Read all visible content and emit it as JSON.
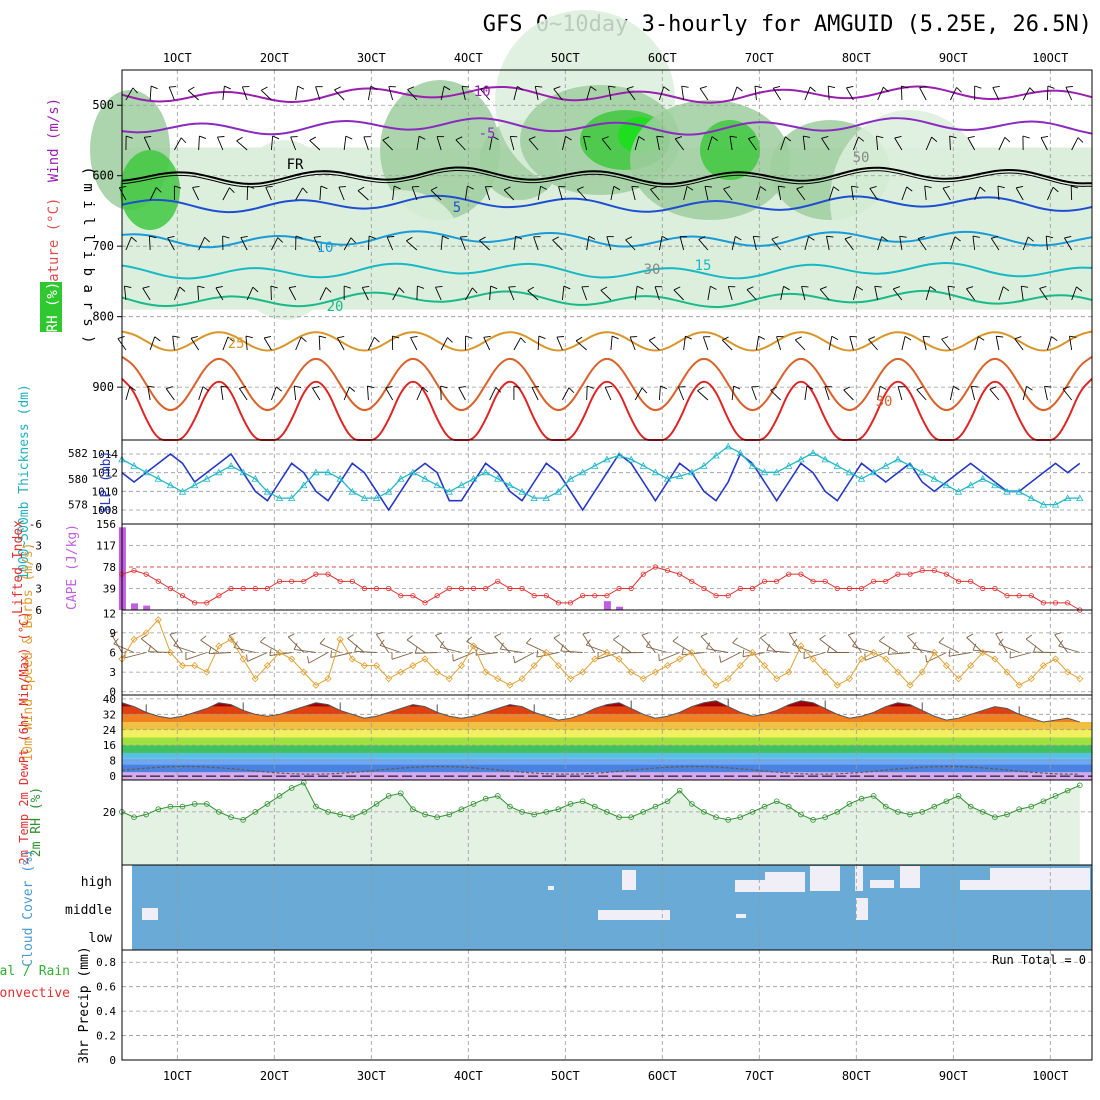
{
  "title": "GFS 0~10day 3-hourly for AMGUID (5.25E, 26.5N)",
  "time_axis": {
    "labels": [
      "1OCT",
      "2OCT",
      "3OCT",
      "4OCT",
      "5OCT",
      "6OCT",
      "7OCT",
      "8OCT",
      "9OCT",
      "10OCT"
    ],
    "start_hour": 0,
    "step_hours": 3,
    "n_steps": 80
  },
  "panels": {
    "upper_air": {
      "ylabels": [
        "Wind (m/s)",
        "Temperature (°C)",
        "RH (%)"
      ],
      "ylabel_mid": "( m i l l i b a r s )",
      "pressure_ticks": [
        500,
        600,
        700,
        800,
        900
      ],
      "ylim_hpa": [
        450,
        975
      ],
      "contour_labels": [
        "-10",
        "-5",
        "FR",
        "5",
        "10",
        "15",
        "20",
        "25",
        "30",
        "30",
        "50"
      ],
      "temperature_isotherms_c": [
        -10,
        -5,
        0,
        5,
        10,
        15,
        20,
        25,
        30,
        35
      ],
      "isotherm_base_level_hpa": [
        485,
        530,
        600,
        640,
        690,
        735,
        775,
        835,
        885,
        930
      ],
      "colors": {
        "neg10": "#9a1fb0",
        "neg5": "#8a2bbf",
        "fr": "#000000",
        "p5": "#1f4fd1",
        "p10": "#1a9ad6",
        "p15": "#18b8c4",
        "p20": "#1ab88a",
        "p25": "#d9962a",
        "p30": "#d9622a",
        "p35": "#e02424",
        "rh_light": "#dcefdc",
        "rh_mid": "#9fce9f",
        "rh_high": "#40c840",
        "rh_max": "#16e016"
      }
    },
    "thickness_slp": {
      "ylabel_left": "1000~500mb Thickness (dm)",
      "ylabel_right": "SLP (mb)",
      "thickness_ticks": [
        578,
        580,
        582
      ],
      "slp_ticks": [
        1008,
        1010,
        1012,
        1014
      ],
      "thickness_ylim": [
        576.5,
        583
      ],
      "slp_ylim": [
        1006.5,
        1015.5
      ],
      "thickness_color": "#22b8c8",
      "slp_color": "#2438c8"
    },
    "cape_li": {
      "ylabel_left": "Lifted Index",
      "ylabel_right": "CAPE (J/kg)",
      "li_ticks": [
        "-6",
        "-3",
        "0",
        "3",
        "6"
      ],
      "cape_ticks": [
        39,
        78,
        117,
        156
      ],
      "li_color": "#e03030",
      "cape_color": "#c060e0",
      "cape_bars": [
        {
          "step": 0,
          "value": 150
        },
        {
          "step": 1,
          "value": 12
        },
        {
          "step": 2,
          "value": 8
        },
        {
          "step": 40,
          "value": 16
        },
        {
          "step": 41,
          "value": 6
        }
      ]
    },
    "wind10m": {
      "ylabel": "10m Wind Speed & Barbs (m/s)",
      "ticks": [
        0,
        3,
        6,
        9,
        12
      ],
      "ylim": [
        -0.5,
        12.5
      ],
      "color": "#e0a030"
    },
    "temp2m": {
      "ylabel": "2m Temp 2m DewPt (6hr Min/Max) (°C)",
      "ticks": [
        0,
        8,
        16,
        24,
        32,
        40
      ],
      "ylim": [
        -2,
        42
      ],
      "color_bands": [
        "#d8a8f0",
        "#4a82e0",
        "#6aa8ff",
        "#58c0e0",
        "#40c060",
        "#a0e040",
        "#f0f060",
        "#f0c040",
        "#f08020",
        "#e04010",
        "#a00000"
      ]
    },
    "rh2m": {
      "ylabel": "2m RH (%)",
      "ticks": [
        20
      ],
      "ylim": [
        0,
        32
      ],
      "color": "#309030"
    },
    "cloud": {
      "ylabel": "Cloud Cover (%)",
      "levels": [
        "high",
        "middle",
        "low"
      ],
      "color_cloud": "#6aaad6",
      "color_clear": "#f0eef6"
    },
    "precip": {
      "ylabel_left": "Total / Rain",
      "ylabel_left2": "Convective",
      "ylabel_right": "3hr Precip (mm)",
      "ticks": [
        "0",
        "0.2",
        "0.4",
        "0.6",
        "0.8"
      ],
      "ylim": [
        0,
        0.9
      ],
      "run_total_text": "Run Total = 0",
      "values": []
    }
  },
  "chart_data": {
    "type": "line",
    "series_temp2m_max": [
      38,
      36,
      33,
      31,
      30,
      31,
      33,
      35,
      38,
      37,
      34,
      32,
      31,
      32,
      34,
      36,
      38,
      37,
      34,
      32,
      30,
      31,
      33,
      35,
      37,
      36,
      33,
      31,
      30,
      31,
      33,
      35,
      37,
      36,
      33,
      31,
      29,
      30,
      32,
      35,
      37,
      38,
      35,
      32,
      30,
      31,
      33,
      36,
      38,
      39,
      36,
      33,
      31,
      32,
      34,
      37,
      39,
      38,
      35,
      32,
      30,
      31,
      33,
      36,
      38,
      37,
      34,
      31,
      29,
      30,
      32,
      34,
      36,
      35,
      32,
      30,
      28,
      29,
      30,
      28
    ],
    "series_rh2m": [
      20,
      18,
      19,
      21,
      22,
      22,
      23,
      23,
      20,
      18,
      17,
      20,
      23,
      26,
      29,
      31,
      22,
      20,
      19,
      18,
      20,
      23,
      26,
      27,
      21,
      19,
      18,
      19,
      21,
      23,
      25,
      26,
      22,
      20,
      19,
      20,
      21,
      23,
      24,
      22,
      20,
      18,
      18,
      20,
      22,
      24,
      28,
      23,
      20,
      18,
      17,
      18,
      20,
      22,
      24,
      22,
      19,
      17,
      18,
      20,
      23,
      25,
      26,
      22,
      20,
      19,
      20,
      22,
      24,
      26,
      22,
      20,
      18,
      19,
      21,
      22,
      24,
      26,
      28,
      30
    ],
    "series_wind10m": [
      5,
      8,
      9,
      11,
      6,
      4,
      4,
      3,
      7,
      8,
      5,
      2,
      4,
      6,
      5,
      3,
      1,
      2,
      8,
      5,
      4,
      4,
      2,
      3,
      4,
      5,
      3,
      2,
      4,
      7,
      3,
      2,
      1,
      2,
      4,
      6,
      4,
      2,
      3,
      5,
      6,
      5,
      3,
      2,
      3,
      4,
      5,
      6,
      3,
      1,
      2,
      4,
      6,
      4,
      2,
      3,
      7,
      5,
      3,
      1,
      2,
      5,
      6,
      5,
      3,
      1,
      3,
      6,
      4,
      2,
      4,
      6,
      5,
      3,
      1,
      2,
      4,
      5,
      3,
      2
    ],
    "series_slp": [
      1012,
      1011,
      1012,
      1013,
      1014,
      1013,
      1011,
      1012,
      1013,
      1014,
      1012,
      1010,
      1009,
      1011,
      1013,
      1012,
      1010,
      1009,
      1011,
      1013,
      1012,
      1010,
      1008,
      1010,
      1012,
      1013,
      1012,
      1009,
      1009,
      1011,
      1013,
      1012,
      1010,
      1009,
      1011,
      1013,
      1012,
      1010,
      1008,
      1010,
      1012,
      1014,
      1013,
      1011,
      1009,
      1011,
      1013,
      1012,
      1010,
      1009,
      1011,
      1014,
      1013,
      1011,
      1009,
      1011,
      1013,
      1012,
      1010,
      1009,
      1011,
      1013,
      1012,
      1011,
      1012,
      1013,
      1011,
      1010,
      1011,
      1012,
      1013,
      1012,
      1011,
      1010,
      1010,
      1011,
      1012,
      1013,
      1012,
      1013
    ],
    "series_thickness": [
      581.5,
      581,
      580.5,
      580,
      579.5,
      579,
      579.5,
      580,
      580.5,
      581,
      580.5,
      580,
      579,
      578.5,
      578.5,
      579.5,
      580.5,
      580.5,
      580,
      579,
      578.5,
      578.5,
      579,
      580,
      580.5,
      580,
      579.5,
      579,
      579.5,
      580,
      580.5,
      580,
      579.5,
      579,
      578.5,
      578.5,
      579,
      580,
      580.5,
      581,
      581.5,
      581.8,
      581.5,
      581,
      580.5,
      580,
      580.2,
      580.5,
      581,
      581.8,
      582.5,
      582,
      581,
      580.5,
      580.5,
      581,
      581.5,
      582,
      581.5,
      581,
      580.5,
      580,
      580.5,
      581,
      581.5,
      581,
      580.5,
      580,
      579.5,
      579,
      579.5,
      580,
      579.5,
      579,
      579,
      578.5,
      578,
      578,
      578.5,
      578.5
    ],
    "series_li": [
      1,
      0.5,
      1,
      2,
      3,
      4,
      5,
      5,
      4,
      3,
      3,
      3,
      3,
      2,
      2,
      2,
      1,
      1,
      2,
      2,
      3,
      3,
      3,
      4,
      4,
      5,
      4,
      3,
      3,
      3,
      3,
      2,
      3,
      3,
      4,
      4,
      5,
      5,
      4,
      4,
      4,
      3,
      3,
      1,
      0,
      0.5,
      1,
      2,
      3,
      4,
      4,
      3,
      3,
      2,
      2,
      1,
      1,
      2,
      2,
      3,
      3,
      3,
      2,
      2,
      1,
      1,
      0.5,
      0.5,
      1,
      2,
      2,
      3,
      3,
      4,
      4,
      4,
      5,
      5,
      5,
      6
    ]
  }
}
